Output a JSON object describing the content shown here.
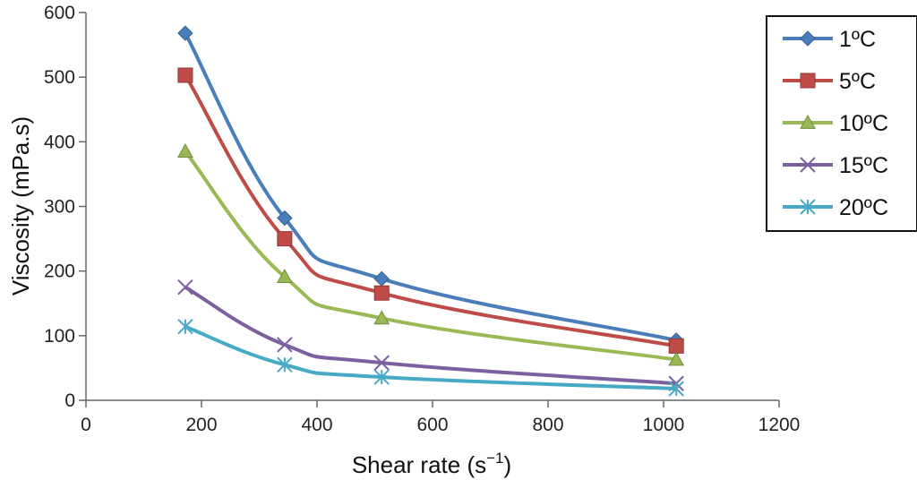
{
  "chart_data": {
    "type": "line",
    "title": "",
    "xlabel": "Shear rate (s",
    "xlabel_sup": "−1",
    "xlabel_close": ")",
    "ylabel": "Viscosity (mPa.s)",
    "xlim": [
      0,
      1200
    ],
    "ylim": [
      0,
      600
    ],
    "xticks": [
      0,
      200,
      400,
      600,
      800,
      1000,
      1200
    ],
    "yticks": [
      0,
      100,
      200,
      300,
      400,
      500,
      600
    ],
    "grid": false,
    "legend_position": "top-right",
    "x": [
      172,
      344,
      512,
      1022
    ],
    "series": [
      {
        "name": "1ºC",
        "values": [
          568,
          282,
          188,
          93
        ],
        "color": "#4a7ebb",
        "marker": "diamond"
      },
      {
        "name": "5ºC",
        "values": [
          503,
          250,
          166,
          84
        ],
        "color": "#be4b48",
        "marker": "square"
      },
      {
        "name": "10ºC",
        "values": [
          385,
          191,
          127,
          63
        ],
        "color": "#98b954",
        "marker": "triangle"
      },
      {
        "name": "15ºC",
        "values": [
          175,
          86,
          58,
          26
        ],
        "color": "#7d60a0",
        "marker": "x"
      },
      {
        "name": "20ºC",
        "values": [
          114,
          55,
          36,
          18
        ],
        "color": "#46aac5",
        "marker": "asterisk"
      }
    ]
  }
}
